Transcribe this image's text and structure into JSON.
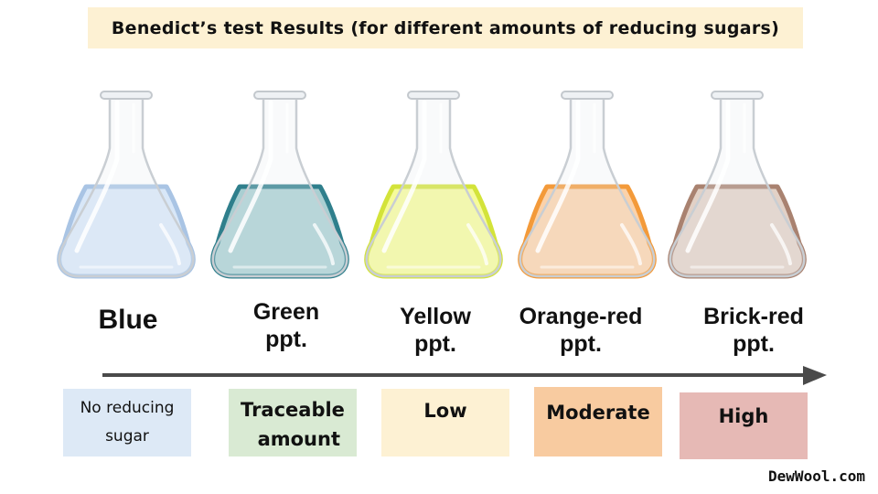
{
  "title": "Benedict’s test Results (for different amounts of reducing sugars)",
  "flasks": [
    {
      "name": "blue",
      "liquid": "#d8e7f8",
      "edge": "#a9c4e4"
    },
    {
      "name": "green",
      "liquid": "#a9cfd2",
      "edge": "#2f7f8c"
    },
    {
      "name": "yellow",
      "liquid": "#f6fb9a",
      "edge": "#d3e33a"
    },
    {
      "name": "orange",
      "liquid": "#fbd2aa",
      "edge": "#f39a3a"
    },
    {
      "name": "brick",
      "liquid": "#e2d1c6",
      "edge": "#a98270"
    }
  ],
  "results": [
    {
      "line1": "Blue",
      "line2": ""
    },
    {
      "line1": "Green",
      "line2": "ppt."
    },
    {
      "line1": "Yellow",
      "line2": "ppt."
    },
    {
      "line1": "Orange-red",
      "line2": "ppt."
    },
    {
      "line1": "Brick-red",
      "line2": "ppt."
    }
  ],
  "amounts": [
    {
      "line1": "No reducing",
      "line2": "sugar",
      "bg": "#dde9f6"
    },
    {
      "line1": "Traceable",
      "line2": "amount",
      "bg": "#d9ead3"
    },
    {
      "line1": "Low",
      "line2": "",
      "bg": "#fdf1d3"
    },
    {
      "line1": "Moderate",
      "line2": "",
      "bg": "#f8cba0"
    },
    {
      "line1": "High",
      "line2": "",
      "bg": "#e6b9b5"
    }
  ],
  "credit": "DewWool.com",
  "arrow_color": "#4a4a4a"
}
